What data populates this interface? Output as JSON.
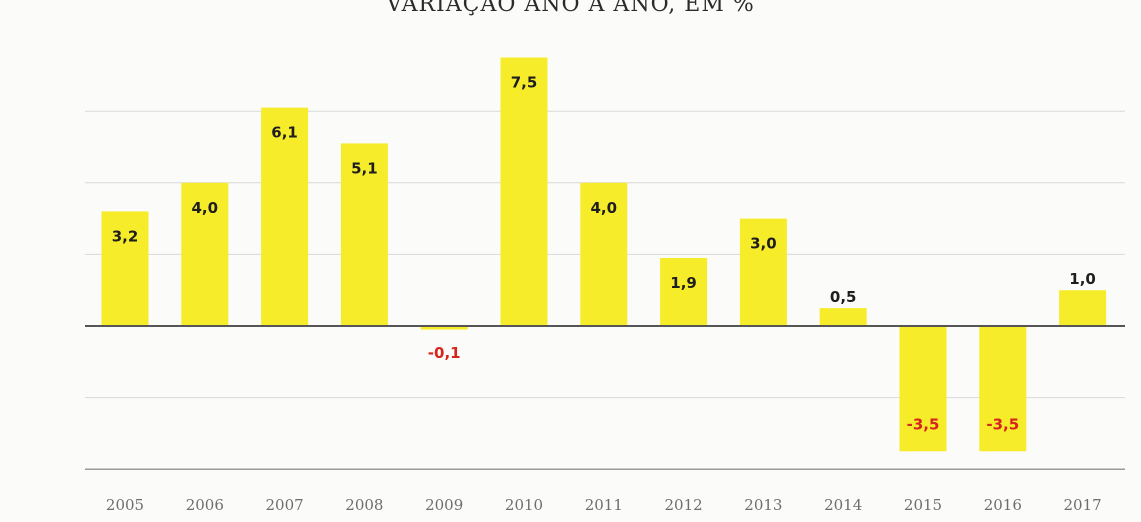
{
  "chart_data": {
    "type": "bar",
    "title": "VARIAÇÃO ANO A ANO, EM %",
    "xlabel": "",
    "ylabel": "",
    "categories": [
      "2005",
      "2006",
      "2007",
      "2008",
      "2009",
      "2010",
      "2011",
      "2012",
      "2013",
      "2014",
      "2015",
      "2016",
      "2017"
    ],
    "values": [
      3.2,
      4.0,
      6.1,
      5.1,
      -0.1,
      7.5,
      4.0,
      1.9,
      3.0,
      0.5,
      -3.5,
      -3.5,
      1.0
    ],
    "value_labels": [
      "3,2",
      "4,0",
      "6,1",
      "5,1",
      "-0,1",
      "7,5",
      "4,0",
      "1,9",
      "3,0",
      "0,5",
      "-3,5",
      "-3,5",
      "1,0"
    ],
    "ylim": [
      -4,
      8
    ],
    "grid": true,
    "legend": "none",
    "colors": {
      "bar": "#f7ec2a",
      "label_positive": "#1e1e1e",
      "label_negative": "#d6251c"
    }
  }
}
